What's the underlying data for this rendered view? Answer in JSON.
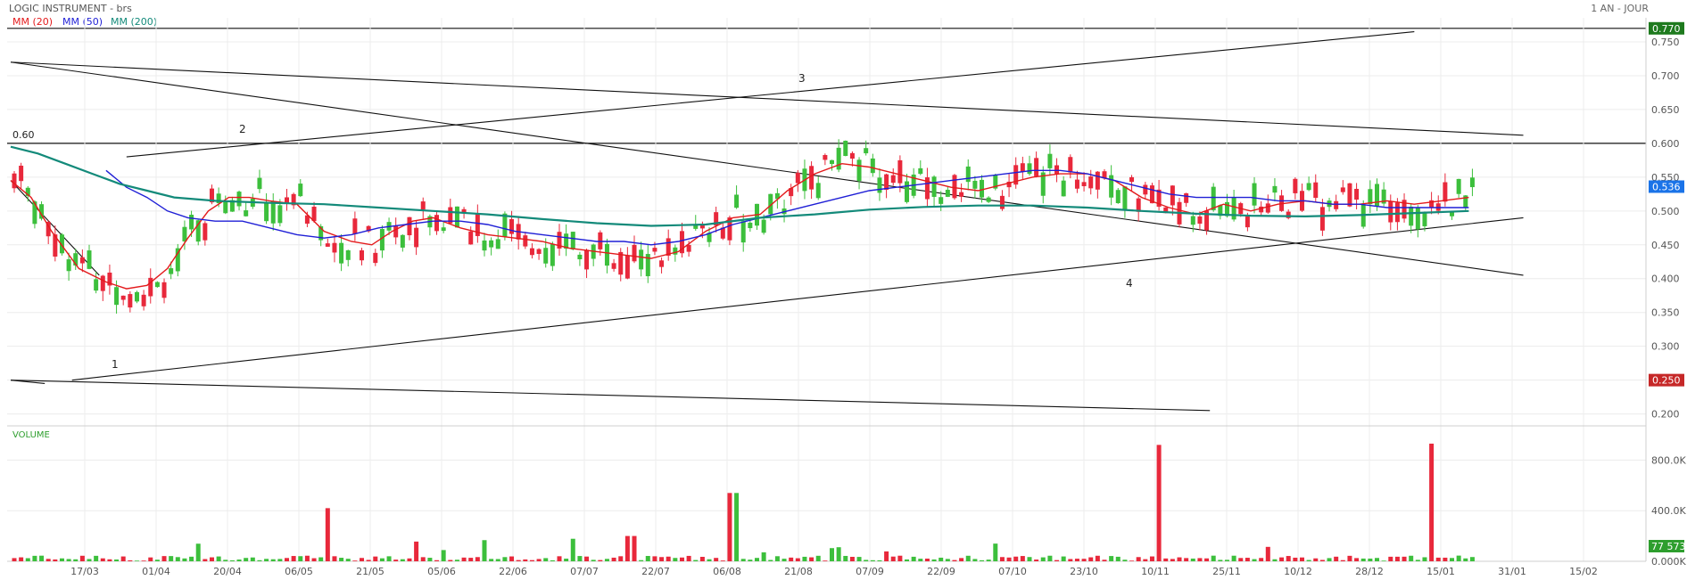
{
  "header": {
    "title": "LOGIC INSTRUMENT - brs",
    "period": "1 AN - JOUR",
    "legend": [
      {
        "label": "MM (20)",
        "color": "#e31a1c"
      },
      {
        "label": "MM (50)",
        "color": "#1f1fd6"
      },
      {
        "label": "MM (200)",
        "color": "#138a7a"
      }
    ]
  },
  "chart_data": [
    {
      "type": "candlestick",
      "title": "LOGIC INSTRUMENT - brs",
      "ylim": [
        0.185,
        0.775
      ],
      "yticks": [
        "0.750",
        "0.700",
        "0.650",
        "0.600",
        "0.550",
        "0.500",
        "0.450",
        "0.400",
        "0.350",
        "0.300",
        "0.250",
        "0.200"
      ],
      "xticks": [
        "17/03",
        "01/04",
        "20/04",
        "06/05",
        "21/05",
        "05/06",
        "22/06",
        "07/07",
        "22/07",
        "06/08",
        "21/08",
        "07/09",
        "22/09",
        "07/10",
        "23/10",
        "10/11",
        "25/11",
        "10/12",
        "28/12",
        "15/01",
        "31/01",
        "15/02"
      ],
      "last_price": "0.536",
      "price_badges": [
        {
          "label": "0.770",
          "value": 0.77,
          "color": "#1e7a1e"
        },
        {
          "label": "0.536",
          "value": 0.536,
          "color": "#1a73e8"
        },
        {
          "label": "0.250",
          "value": 0.25,
          "color": "#c62828"
        }
      ],
      "hline_label": "0.60",
      "hlines": [
        0.77,
        0.6
      ],
      "annotations": [
        "1",
        "2",
        "3",
        "4"
      ],
      "series": [
        {
          "name": "MM (20)",
          "color": "#e31a1c",
          "points": [
            [
              0,
              0.545
            ],
            [
              3,
              0.52
            ],
            [
              6,
              0.47
            ],
            [
              10,
              0.415
            ],
            [
              14,
              0.395
            ],
            [
              17,
              0.385
            ],
            [
              20,
              0.39
            ],
            [
              23,
              0.415
            ],
            [
              26,
              0.46
            ],
            [
              29,
              0.5
            ],
            [
              32,
              0.52
            ],
            [
              35,
              0.52
            ],
            [
              38,
              0.515
            ],
            [
              42,
              0.51
            ],
            [
              46,
              0.47
            ],
            [
              50,
              0.455
            ],
            [
              53,
              0.45
            ],
            [
              56,
              0.47
            ],
            [
              59,
              0.485
            ],
            [
              62,
              0.49
            ],
            [
              66,
              0.475
            ],
            [
              70,
              0.465
            ],
            [
              74,
              0.46
            ],
            [
              78,
              0.455
            ],
            [
              82,
              0.445
            ],
            [
              86,
              0.44
            ],
            [
              90,
              0.435
            ],
            [
              94,
              0.43
            ],
            [
              98,
              0.44
            ],
            [
              102,
              0.47
            ],
            [
              106,
              0.49
            ],
            [
              110,
              0.495
            ],
            [
              114,
              0.53
            ],
            [
              118,
              0.555
            ],
            [
              122,
              0.57
            ],
            [
              126,
              0.565
            ],
            [
              130,
              0.555
            ],
            [
              134,
              0.545
            ],
            [
              138,
              0.535
            ],
            [
              142,
              0.53
            ],
            [
              146,
              0.54
            ],
            [
              150,
              0.55
            ],
            [
              154,
              0.555
            ],
            [
              158,
              0.555
            ],
            [
              162,
              0.545
            ],
            [
              166,
              0.52
            ],
            [
              170,
              0.505
            ],
            [
              174,
              0.495
            ],
            [
              178,
              0.51
            ],
            [
              182,
              0.5
            ],
            [
              186,
              0.51
            ],
            [
              190,
              0.515
            ],
            [
              194,
              0.51
            ],
            [
              198,
              0.51
            ],
            [
              202,
              0.515
            ],
            [
              206,
              0.51
            ],
            [
              210,
              0.515
            ],
            [
              214,
              0.52
            ]
          ]
        },
        {
          "name": "MM (50)",
          "color": "#1f1fd6",
          "points": [
            [
              14,
              0.56
            ],
            [
              17,
              0.535
            ],
            [
              20,
              0.52
            ],
            [
              23,
              0.5
            ],
            [
              26,
              0.49
            ],
            [
              30,
              0.485
            ],
            [
              34,
              0.485
            ],
            [
              38,
              0.475
            ],
            [
              42,
              0.465
            ],
            [
              46,
              0.46
            ],
            [
              50,
              0.465
            ],
            [
              54,
              0.475
            ],
            [
              58,
              0.48
            ],
            [
              62,
              0.485
            ],
            [
              66,
              0.485
            ],
            [
              70,
              0.48
            ],
            [
              74,
              0.47
            ],
            [
              78,
              0.465
            ],
            [
              82,
              0.46
            ],
            [
              86,
              0.455
            ],
            [
              90,
              0.455
            ],
            [
              94,
              0.45
            ],
            [
              98,
              0.455
            ],
            [
              102,
              0.465
            ],
            [
              106,
              0.48
            ],
            [
              110,
              0.49
            ],
            [
              114,
              0.5
            ],
            [
              118,
              0.51
            ],
            [
              122,
              0.52
            ],
            [
              126,
              0.53
            ],
            [
              130,
              0.535
            ],
            [
              134,
              0.54
            ],
            [
              138,
              0.545
            ],
            [
              142,
              0.55
            ],
            [
              146,
              0.555
            ],
            [
              150,
              0.56
            ],
            [
              154,
              0.56
            ],
            [
              158,
              0.555
            ],
            [
              162,
              0.545
            ],
            [
              166,
              0.535
            ],
            [
              170,
              0.525
            ],
            [
              174,
              0.52
            ],
            [
              178,
              0.52
            ],
            [
              182,
              0.52
            ],
            [
              186,
              0.515
            ],
            [
              190,
              0.515
            ],
            [
              194,
              0.51
            ],
            [
              198,
              0.51
            ],
            [
              202,
              0.505
            ],
            [
              206,
              0.505
            ],
            [
              210,
              0.505
            ],
            [
              214,
              0.505
            ]
          ]
        },
        {
          "name": "MM (200)",
          "color": "#138a7a",
          "points": [
            [
              0,
              0.595
            ],
            [
              4,
              0.585
            ],
            [
              8,
              0.57
            ],
            [
              12,
              0.555
            ],
            [
              16,
              0.54
            ],
            [
              20,
              0.53
            ],
            [
              24,
              0.52
            ],
            [
              30,
              0.515
            ],
            [
              38,
              0.512
            ],
            [
              46,
              0.51
            ],
            [
              54,
              0.505
            ],
            [
              62,
              0.5
            ],
            [
              70,
              0.495
            ],
            [
              78,
              0.488
            ],
            [
              86,
              0.482
            ],
            [
              94,
              0.478
            ],
            [
              102,
              0.48
            ],
            [
              110,
              0.49
            ],
            [
              118,
              0.495
            ],
            [
              126,
              0.502
            ],
            [
              134,
              0.506
            ],
            [
              142,
              0.508
            ],
            [
              150,
              0.508
            ],
            [
              158,
              0.505
            ],
            [
              166,
              0.5
            ],
            [
              174,
              0.496
            ],
            [
              182,
              0.493
            ],
            [
              190,
              0.492
            ],
            [
              198,
              0.494
            ],
            [
              206,
              0.497
            ],
            [
              214,
              0.5
            ]
          ]
        }
      ],
      "trendlines": [
        {
          "name": "resistance-down-1",
          "from": [
            0,
            0.72
          ],
          "to": [
            222,
            0.405
          ]
        },
        {
          "name": "resistance-down-2",
          "from": [
            0,
            0.72
          ],
          "to": [
            222,
            0.612
          ]
        },
        {
          "name": "support-up-1",
          "from": [
            9,
            0.25
          ],
          "to": [
            222,
            0.49
          ]
        },
        {
          "name": "support-down",
          "from": [
            0,
            0.25
          ],
          "to": [
            176,
            0.205
          ]
        },
        {
          "name": "support-down-short",
          "from": [
            0,
            0.25
          ],
          "to": [
            5,
            0.245
          ]
        },
        {
          "name": "channel-up",
          "from": [
            17,
            0.58
          ],
          "to": [
            206,
            0.765
          ]
        },
        {
          "name": "early-down",
          "from": [
            0,
            0.545
          ],
          "to": [
            13,
            0.405
          ]
        }
      ]
    },
    {
      "type": "bar",
      "title": "VOLUME",
      "ylim": [
        0,
        1000000
      ],
      "yticks": [
        "800.0K",
        "400.0K",
        "0.000K"
      ],
      "last_volume": "77 573",
      "last_volume_color": "#2e9e2e",
      "up_color": "#3cbf3c",
      "down_color": "#e8283b"
    }
  ]
}
